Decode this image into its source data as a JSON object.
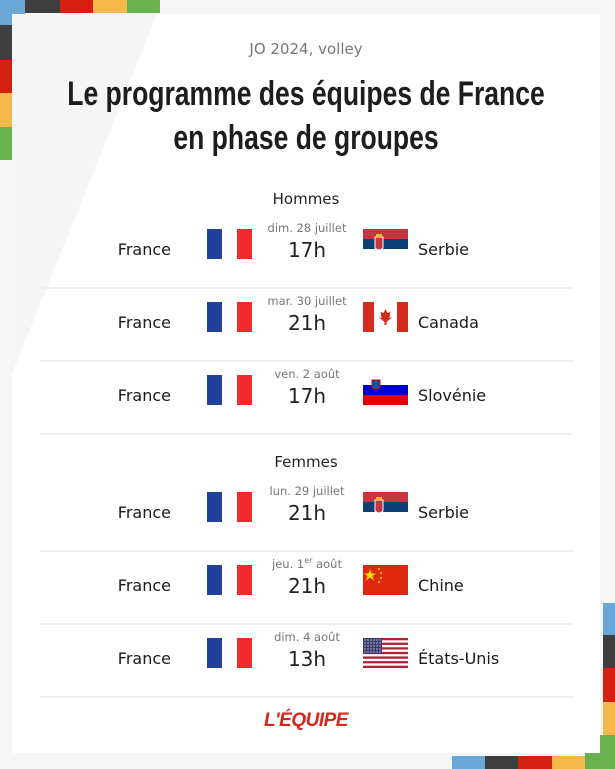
{
  "header": {
    "subtitle": "JO 2024, volley",
    "title_line1": "Le programme des équipes de France",
    "title_line2": "en phase de groupes"
  },
  "colors": {
    "blue": "#6aa7d9",
    "dark": "#3e3e3e",
    "red": "#d42010",
    "yellow": "#f7b84b",
    "green": "#6ab24f",
    "brand": "#d8261c"
  },
  "sections": [
    {
      "label": "Hommes",
      "matches": [
        {
          "home": "France",
          "home_flag": "france",
          "date": "dim. 28 juillet",
          "date_sup": "",
          "date_suffix": "",
          "time": "17h",
          "away": "Serbie",
          "away_flag": "serbia"
        },
        {
          "home": "France",
          "home_flag": "france",
          "date": "mar. 30 juillet",
          "date_sup": "",
          "date_suffix": "",
          "time": "21h",
          "away": "Canada",
          "away_flag": "canada"
        },
        {
          "home": "France",
          "home_flag": "france",
          "date": "ven. 2 août",
          "date_sup": "",
          "date_suffix": "",
          "time": "17h",
          "away": "Slovénie",
          "away_flag": "slovenia"
        }
      ]
    },
    {
      "label": "Femmes",
      "matches": [
        {
          "home": "France",
          "home_flag": "france",
          "date": "lun. 29 juillet",
          "date_sup": "",
          "date_suffix": "",
          "time": "21h",
          "away": "Serbie",
          "away_flag": "serbia"
        },
        {
          "home": "France",
          "home_flag": "france",
          "date": "jeu. 1",
          "date_sup": "er",
          "date_suffix": " août",
          "time": "21h",
          "away": "Chine",
          "away_flag": "china"
        },
        {
          "home": "France",
          "home_flag": "france",
          "date": "dim. 4 août",
          "date_sup": "",
          "date_suffix": "",
          "time": "13h",
          "away": "États-Unis",
          "away_flag": "usa"
        }
      ]
    }
  ],
  "footer": {
    "logo": "L'ÉQUIPE"
  }
}
